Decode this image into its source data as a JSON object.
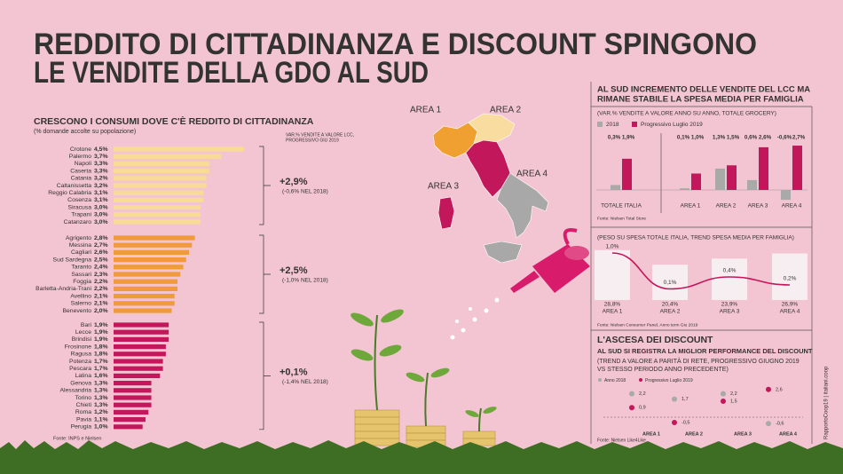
{
  "title_lines": [
    "REDDITO DI CITTADINANZA E DISCOUNT SPINGONO",
    "LE VENDITE DELLA GDO AL SUD"
  ],
  "credit": "RapportoCoop19 | italiani.coop",
  "map": {
    "labels": [
      "AREA 1",
      "AREA 2",
      "AREA 3",
      "AREA 4"
    ]
  },
  "chart_data": [
    {
      "type": "grouped-hbar",
      "title": "CRESCONO I CONSUMI DOVE C'È REDDITO DI CITTADINANZA",
      "subtitle": "(% domande accolte su popolazione)",
      "annotation_header": [
        "VAR.% VENDITE A VALORE LCC,",
        "PROGRESSIVO GIU 2019"
      ],
      "source": "Fonte: INPS e Nielsen",
      "groups": [
        {
          "color": "#f8dc96",
          "change": "+2,9%",
          "change_note": "(-0,6% NEL 2018)",
          "categories": [
            "Crotone",
            "Palermo",
            "Napoli",
            "Caserta",
            "Catania",
            "Caltanissetta",
            "Reggio Calabria",
            "Cosenza",
            "Siracusa",
            "Trapani",
            "Catanzaro"
          ],
          "values": [
            4.5,
            3.7,
            3.3,
            3.3,
            3.2,
            3.2,
            3.1,
            3.1,
            3.0,
            3.0,
            3.0
          ],
          "value_labels": [
            "4,5%",
            "3,7%",
            "3,3%",
            "3,3%",
            "3,2%",
            "3,2%",
            "3,1%",
            "3,1%",
            "3,0%",
            "3,0%",
            "3,0%"
          ]
        },
        {
          "color": "#f09a3a",
          "change": "+2,5%",
          "change_note": "(-1,0% NEL 2018)",
          "categories": [
            "Agrigento",
            "Messina",
            "Cagliari",
            "Sud Sardegna",
            "Taranto",
            "Sassari",
            "Foggia",
            "Barletta-Andria-Trani",
            "Avellino",
            "Salerno",
            "Benevento"
          ],
          "values": [
            2.8,
            2.7,
            2.6,
            2.5,
            2.4,
            2.3,
            2.2,
            2.2,
            2.1,
            2.1,
            2.0
          ],
          "value_labels": [
            "2,8%",
            "2,7%",
            "2,6%",
            "2,5%",
            "2,4%",
            "2,3%",
            "2,2%",
            "2,2%",
            "2,1%",
            "2,1%",
            "2,0%"
          ]
        },
        {
          "color": "#c2185b",
          "change": "+0,1%",
          "change_note": "(-1,4% NEL 2018)",
          "categories": [
            "Bari",
            "Lecce",
            "Brindisi",
            "Frosinone",
            "Ragusa",
            "Potenza",
            "Pescara",
            "Latina",
            "Genova",
            "Alessandria",
            "Torino",
            "Chieti",
            "Roma",
            "Pavia",
            "Perugia"
          ],
          "values": [
            1.9,
            1.9,
            1.9,
            1.8,
            1.8,
            1.7,
            1.7,
            1.6,
            1.3,
            1.3,
            1.3,
            1.3,
            1.2,
            1.1,
            1.0
          ],
          "value_labels": [
            "1,9%",
            "1,9%",
            "1,9%",
            "1,8%",
            "1,8%",
            "1,7%",
            "1,7%",
            "1,6%",
            "1,3%",
            "1,3%",
            "1,3%",
            "1,3%",
            "1,2%",
            "1,1%",
            "1,0%"
          ]
        }
      ]
    },
    {
      "type": "bar",
      "title_lines": [
        "AL SUD INCREMENTO DELLE VENDITE DEL LCC MA",
        "RIMANE STABILE LA SPESA MEDIA PER FAMIGLIA"
      ],
      "subtitle": "(VAR.% VENDITE A VALORE ANNO SU ANNO, TOTALE GROCERY)",
      "source": "Fonte: Nielsen Total Store",
      "categories": [
        "TOTALE ITALIA",
        "AREA 1",
        "AREA 2",
        "AREA 3",
        "AREA 4"
      ],
      "series": [
        {
          "name": "2018",
          "color": "#a9a9a9",
          "values": [
            0.3,
            0.1,
            1.3,
            0.6,
            -0.6
          ],
          "value_labels": [
            "0,3%",
            "0,1%",
            "1,3%",
            "0,6%",
            "-0,6%"
          ]
        },
        {
          "name": "Progressivo Luglio 2019",
          "color": "#c2185b",
          "values": [
            1.9,
            1.0,
            1.5,
            2.6,
            2.7
          ],
          "value_labels": [
            "1,9%",
            "1,0%",
            "1,5%",
            "2,6%",
            "2,7%"
          ]
        }
      ]
    },
    {
      "type": "bar-line",
      "subtitle": "(PESO SU SPESA TOTALE ITALIA, TREND SPESA MEDIA PER FAMIGLIA)",
      "source": "Fonte: Nielsen Consumer Panel, Anno term Giu 2019",
      "categories": [
        "AREA 1",
        "AREA 2",
        "AREA 3",
        "AREA 4"
      ],
      "series": [
        {
          "color": "#f7eef1",
          "values": [
            28.8,
            20.4,
            23.9,
            26.9
          ],
          "value_labels": [
            "28,8%",
            "20,4%",
            "23,9%",
            "26,9%"
          ]
        },
        {
          "color": "#c2185b",
          "values": [
            1.0,
            0.1,
            0.4,
            0.2
          ],
          "value_labels": [
            "1,0%",
            "0,1%",
            "0,4%",
            "0,2%"
          ]
        }
      ]
    },
    {
      "type": "dot",
      "title": "L'ASCESA DEI DISCOUNT",
      "subtitle": "AL SUD SI REGISTRA LA MIGLIOR PERFORMANCE DEL DISCOUNT",
      "note_lines": [
        "(TREND A VALORE A PARITÀ DI RETE, PROGRESSIVO GIUGNO 2019",
        "VS STESSO PERIODO ANNO PRECEDENTE)"
      ],
      "source": "Fonte: Nielsen Like4Like",
      "categories": [
        "AREA 1",
        "AREA 2",
        "AREA 3",
        "AREA 4"
      ],
      "series": [
        {
          "name": "Anno 2018",
          "color": "#a9a9a9",
          "values": [
            2.2,
            1.7,
            2.2,
            -0.6
          ],
          "value_labels": [
            "2,2",
            "1,7",
            "2,2",
            "-0,6"
          ]
        },
        {
          "name": "Progressivo Luglio 2019",
          "color": "#c2185b",
          "values": [
            0.9,
            -0.5,
            1.5,
            2.6
          ],
          "value_labels": [
            "0,9",
            "-0,5",
            "1,5",
            "2,6"
          ]
        }
      ]
    }
  ]
}
